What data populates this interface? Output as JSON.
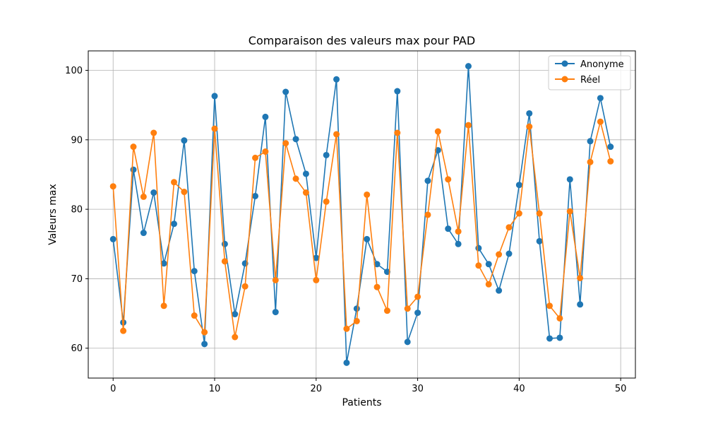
{
  "chart_data": {
    "type": "line",
    "title": "Comparaison des valeurs max pour PAD",
    "xlabel": "Patients",
    "ylabel": "Valeurs max",
    "xlim": [
      -2.45,
      51.45
    ],
    "ylim": [
      55.7,
      102.8
    ],
    "xticks": [
      0,
      10,
      20,
      30,
      40,
      50
    ],
    "yticks": [
      60,
      70,
      80,
      90,
      100
    ],
    "grid": true,
    "legend_position": "top-right",
    "x": [
      0,
      1,
      2,
      3,
      4,
      5,
      6,
      7,
      8,
      9,
      10,
      11,
      12,
      13,
      14,
      15,
      16,
      17,
      18,
      19,
      20,
      21,
      22,
      23,
      24,
      25,
      26,
      27,
      28,
      29,
      30,
      31,
      32,
      33,
      34,
      35,
      36,
      37,
      38,
      39,
      40,
      41,
      42,
      43,
      44,
      45,
      46,
      47,
      48,
      49
    ],
    "series": [
      {
        "name": "Anonyme",
        "color": "#1f77b4",
        "marker": "circle",
        "values": [
          75.7,
          63.7,
          85.7,
          76.6,
          82.4,
          72.2,
          77.9,
          89.9,
          71.1,
          60.6,
          96.3,
          75.0,
          64.9,
          72.2,
          81.9,
          93.3,
          65.2,
          96.9,
          90.1,
          85.1,
          73.0,
          87.8,
          98.7,
          57.9,
          65.7,
          75.7,
          72.1,
          71.0,
          97.0,
          60.9,
          65.1,
          84.1,
          88.5,
          77.2,
          75.0,
          100.6,
          74.4,
          72.1,
          68.3,
          73.6,
          83.5,
          93.8,
          75.4,
          61.4,
          61.5,
          84.3,
          66.3,
          89.8,
          96.0,
          89.0
        ]
      },
      {
        "name": "Réel",
        "color": "#ff7f0e",
        "marker": "circle",
        "values": [
          83.3,
          62.5,
          89.0,
          81.8,
          91.0,
          66.1,
          83.9,
          82.5,
          64.7,
          62.3,
          91.6,
          72.5,
          61.6,
          68.9,
          87.4,
          88.3,
          69.8,
          89.5,
          84.4,
          82.4,
          69.8,
          81.1,
          90.8,
          62.8,
          63.9,
          82.1,
          68.8,
          65.4,
          91.0,
          65.7,
          67.4,
          79.2,
          91.2,
          84.3,
          76.8,
          92.1,
          71.9,
          69.2,
          73.5,
          77.4,
          79.4,
          91.9,
          79.4,
          66.1,
          64.3,
          79.7,
          70.1,
          86.8,
          92.6,
          86.9
        ]
      }
    ]
  }
}
